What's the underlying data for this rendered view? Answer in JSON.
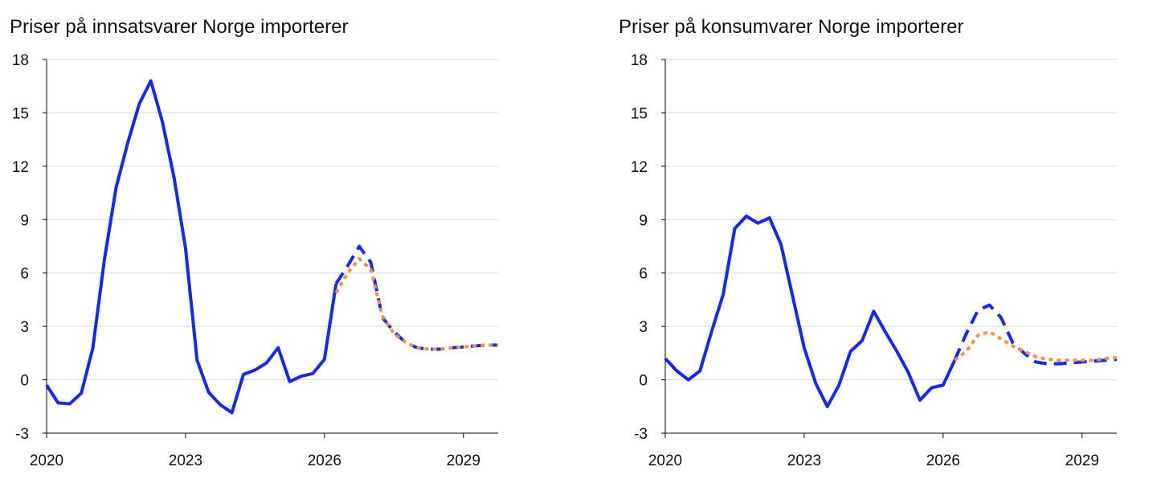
{
  "colors": {
    "solid": "#1428F0",
    "dashed": "#1428F0",
    "dotted": "#F0914B",
    "grid": "#d9d9d9",
    "axis": "#000000"
  },
  "chart_data": [
    {
      "type": "line",
      "title": "Priser på innsatsvarer Norge importerer",
      "xlabel": "",
      "ylabel": "",
      "xlim": [
        2020.0,
        2029.75
      ],
      "ylim": [
        -3,
        18
      ],
      "y_ticks": [
        "-3",
        "0",
        "3",
        "6",
        "9",
        "12",
        "15",
        "18"
      ],
      "x_ticks": [
        "2020",
        "2023",
        "2026",
        "2029"
      ],
      "grid": true,
      "series": [
        {
          "style": "solid",
          "x": [
            2020.0,
            2020.25,
            2020.5,
            2020.75,
            2021.0,
            2021.25,
            2021.5,
            2021.75,
            2022.0,
            2022.25,
            2022.5,
            2022.75,
            2023.0,
            2023.25,
            2023.5,
            2023.75,
            2024.0,
            2024.25,
            2024.5,
            2024.75,
            2025.0,
            2025.25,
            2025.5,
            2025.75,
            2026.0,
            2026.25
          ],
          "values": [
            -0.3,
            -1.3,
            -1.35,
            -0.75,
            1.8,
            6.8,
            10.8,
            13.3,
            15.5,
            16.8,
            14.5,
            11.4,
            7.4,
            1.1,
            -0.7,
            -1.4,
            -1.85,
            0.3,
            0.55,
            0.95,
            1.8,
            -0.1,
            0.2,
            0.35,
            1.15,
            5.4
          ]
        },
        {
          "style": "dashed",
          "x": [
            2026.25,
            2026.5,
            2026.75,
            2027.0,
            2027.25,
            2027.5,
            2027.75,
            2028.0,
            2028.25,
            2028.5,
            2028.75,
            2029.0,
            2029.25,
            2029.5,
            2029.75
          ],
          "values": [
            5.4,
            6.4,
            7.5,
            6.6,
            3.5,
            2.7,
            2.1,
            1.8,
            1.72,
            1.72,
            1.8,
            1.85,
            1.9,
            1.95,
            1.95
          ]
        },
        {
          "style": "dotted",
          "x": [
            2026.25,
            2026.5,
            2026.75,
            2027.0,
            2027.25,
            2027.5,
            2027.75,
            2028.0,
            2028.25,
            2028.5,
            2028.75,
            2029.0,
            2029.25,
            2029.5,
            2029.75
          ],
          "values": [
            4.9,
            6.0,
            6.8,
            6.2,
            3.6,
            2.6,
            2.1,
            1.8,
            1.72,
            1.72,
            1.8,
            1.85,
            1.9,
            1.95,
            1.95
          ]
        }
      ]
    },
    {
      "type": "line",
      "title": "Priser på konsumvarer Norge importerer",
      "xlabel": "",
      "ylabel": "",
      "xlim": [
        2020.0,
        2029.75
      ],
      "ylim": [
        -3,
        18
      ],
      "y_ticks": [
        "-3",
        "0",
        "3",
        "6",
        "9",
        "12",
        "15",
        "18"
      ],
      "x_ticks": [
        "2020",
        "2023",
        "2026",
        "2029"
      ],
      "grid": true,
      "series": [
        {
          "style": "solid",
          "x": [
            2020.0,
            2020.25,
            2020.5,
            2020.75,
            2021.0,
            2021.25,
            2021.5,
            2021.75,
            2022.0,
            2022.25,
            2022.5,
            2022.75,
            2023.0,
            2023.25,
            2023.5,
            2023.75,
            2024.0,
            2024.25,
            2024.5,
            2024.75,
            2025.0,
            2025.25,
            2025.5,
            2025.75,
            2026.0,
            2026.25
          ],
          "values": [
            1.2,
            0.5,
            0.0,
            0.5,
            2.7,
            4.8,
            8.5,
            9.2,
            8.8,
            9.1,
            7.6,
            4.7,
            1.8,
            -0.2,
            -1.5,
            -0.3,
            1.6,
            2.2,
            3.85,
            2.7,
            1.6,
            0.4,
            -1.15,
            -0.45,
            -0.3,
            1.1
          ]
        },
        {
          "style": "dashed",
          "x": [
            2026.25,
            2026.5,
            2026.75,
            2027.0,
            2027.25,
            2027.5,
            2027.75,
            2028.0,
            2028.25,
            2028.5,
            2028.75,
            2029.0,
            2029.25,
            2029.5,
            2029.75
          ],
          "values": [
            1.1,
            2.6,
            3.9,
            4.2,
            3.5,
            2.1,
            1.5,
            1.0,
            0.9,
            0.9,
            0.95,
            1.0,
            1.05,
            1.1,
            1.15
          ]
        },
        {
          "style": "dotted",
          "x": [
            2026.25,
            2026.5,
            2026.75,
            2027.0,
            2027.25,
            2027.5,
            2027.75,
            2028.0,
            2028.25,
            2028.5,
            2028.75,
            2029.0,
            2029.25,
            2029.5,
            2029.75
          ],
          "values": [
            1.1,
            1.6,
            2.5,
            2.7,
            2.3,
            1.9,
            1.6,
            1.3,
            1.15,
            1.1,
            1.1,
            1.1,
            1.1,
            1.2,
            1.25
          ]
        }
      ]
    }
  ]
}
